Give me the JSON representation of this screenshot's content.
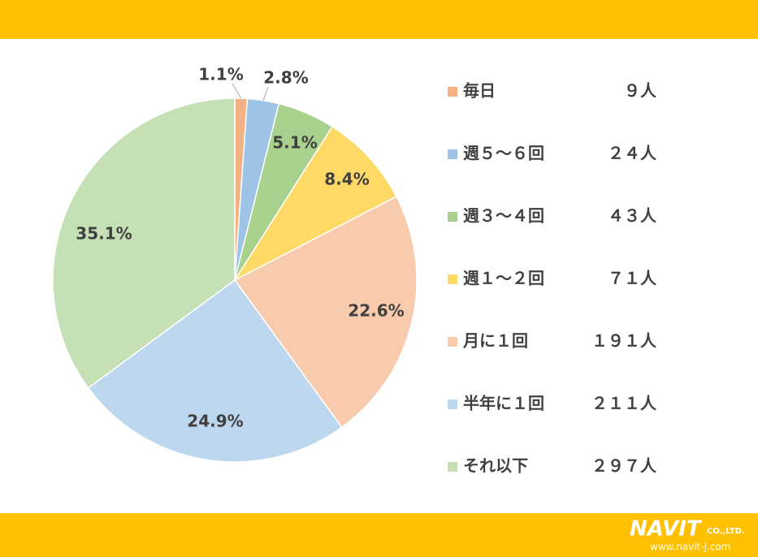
{
  "chart_data": {
    "type": "pie",
    "categories": [
      "毎日",
      "週５～６回",
      "週３～４回",
      "週１～２回",
      "月に１回",
      "半年に１回",
      "それ以下"
    ],
    "values": [
      1.1,
      2.8,
      5.1,
      8.4,
      22.6,
      24.9,
      35.1
    ],
    "value_labels": [
      "1.1%",
      "2.8%",
      "5.1%",
      "8.4%",
      "22.6%",
      "24.9%",
      "35.1%"
    ],
    "counts": [
      9,
      24,
      43,
      71,
      191,
      211,
      297
    ],
    "count_labels": [
      "９人",
      "２４人",
      "４３人",
      "７１人",
      "１９１人",
      "２１１人",
      "２９７人"
    ],
    "colors": [
      "#F4B183",
      "#9DC3E6",
      "#A9D18E",
      "#FFD966",
      "#F8CBAD",
      "#BDD7EE",
      "#C5E0B4"
    ],
    "legend": "right"
  },
  "logo": {
    "name": "NAVIT",
    "suffix": "CO.,LTD.",
    "url": "www.navit-j.com"
  }
}
